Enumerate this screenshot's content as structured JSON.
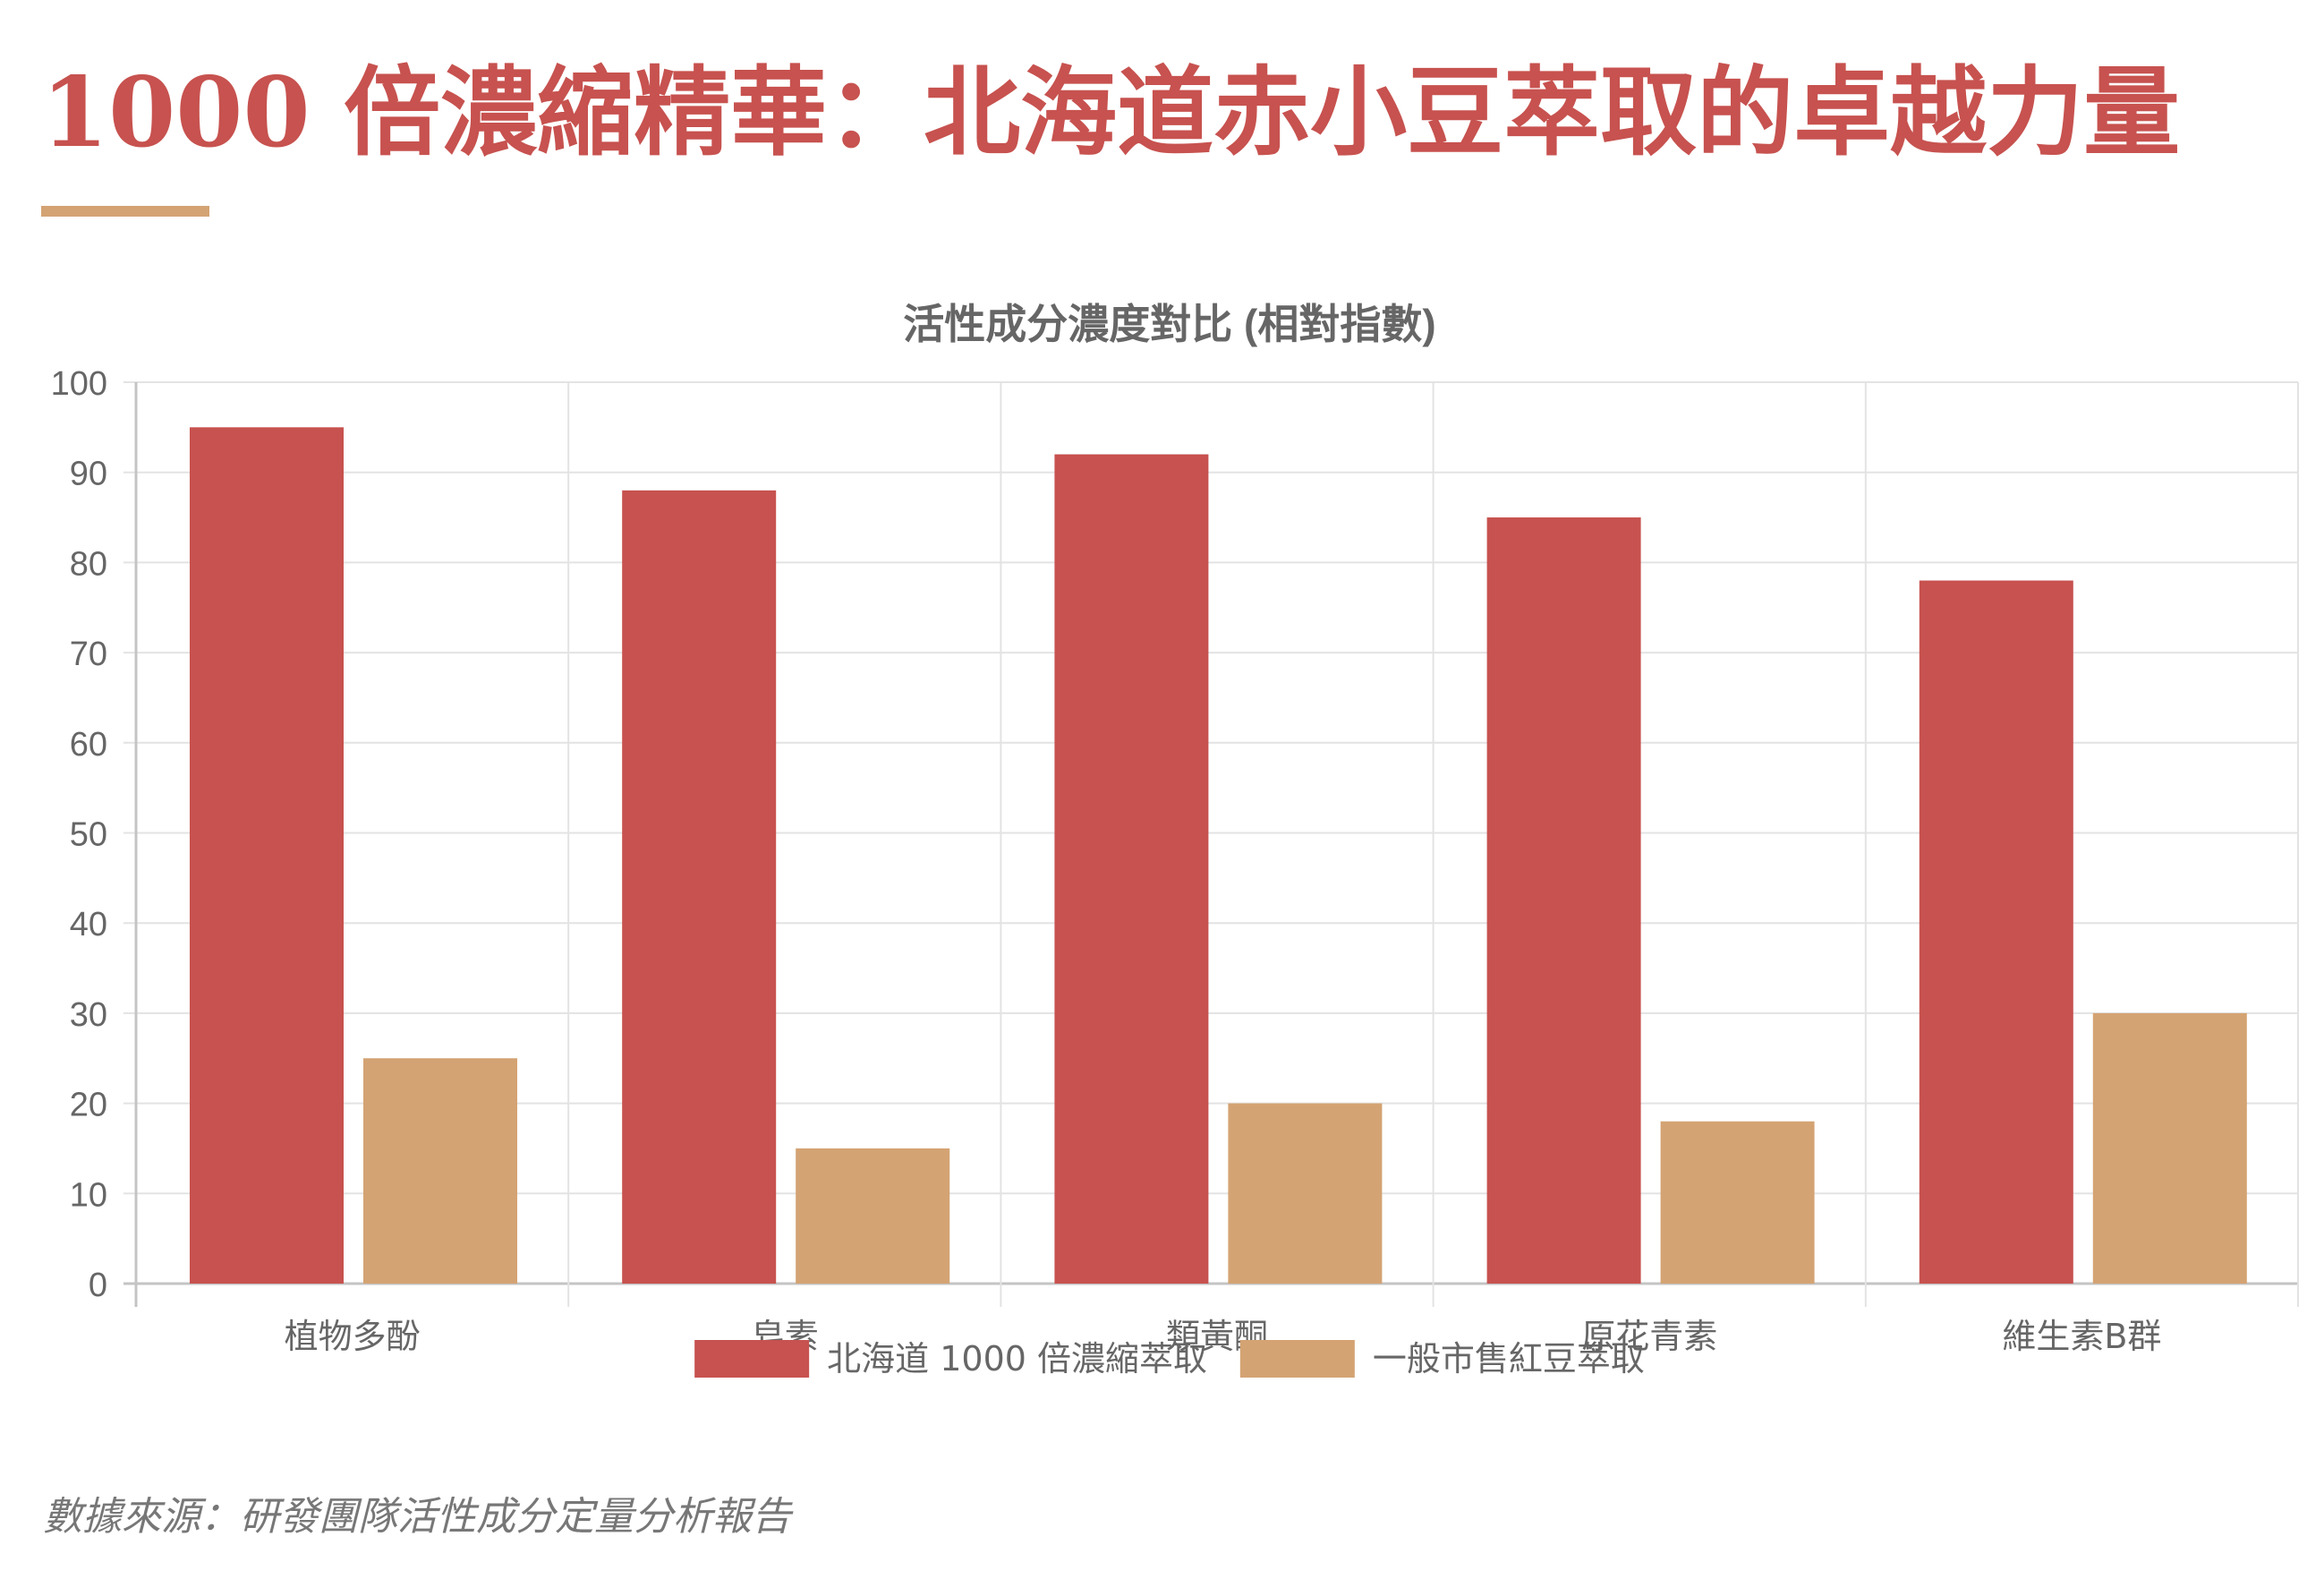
{
  "page": {
    "title": "1000 倍濃縮精華：北海道赤小豆萃取的卓越力量",
    "source_note": "數據來源：研發團隊活性成分定量分析報告"
  },
  "colors": {
    "accent": "#c7524f",
    "gold": "#d4a373",
    "grid": "#e3e3e3",
    "axis": "#c4c4c4",
    "text": "#666666"
  },
  "chart_data": {
    "type": "bar",
    "title": "活性成分濃度對比 (相對指數)",
    "xlabel": "",
    "ylabel": "",
    "categories": [
      "植物多酚",
      "皂素",
      "類黃酮",
      "原花青素",
      "維生素B群"
    ],
    "series": [
      {
        "name": "北海道 1000 倍濃縮萃取",
        "values": [
          95,
          88,
          92,
          85,
          78
        ],
        "color": "#c7524f"
      },
      {
        "name": "一般市售紅豆萃取",
        "values": [
          25,
          15,
          20,
          18,
          30
        ],
        "color": "#d4a373"
      }
    ],
    "ylim": [
      0,
      100
    ],
    "yticks": [
      "0",
      "10",
      "20",
      "30",
      "40",
      "50",
      "60",
      "70",
      "80",
      "90",
      "100"
    ],
    "grid": true,
    "legend": "bottom-center"
  }
}
